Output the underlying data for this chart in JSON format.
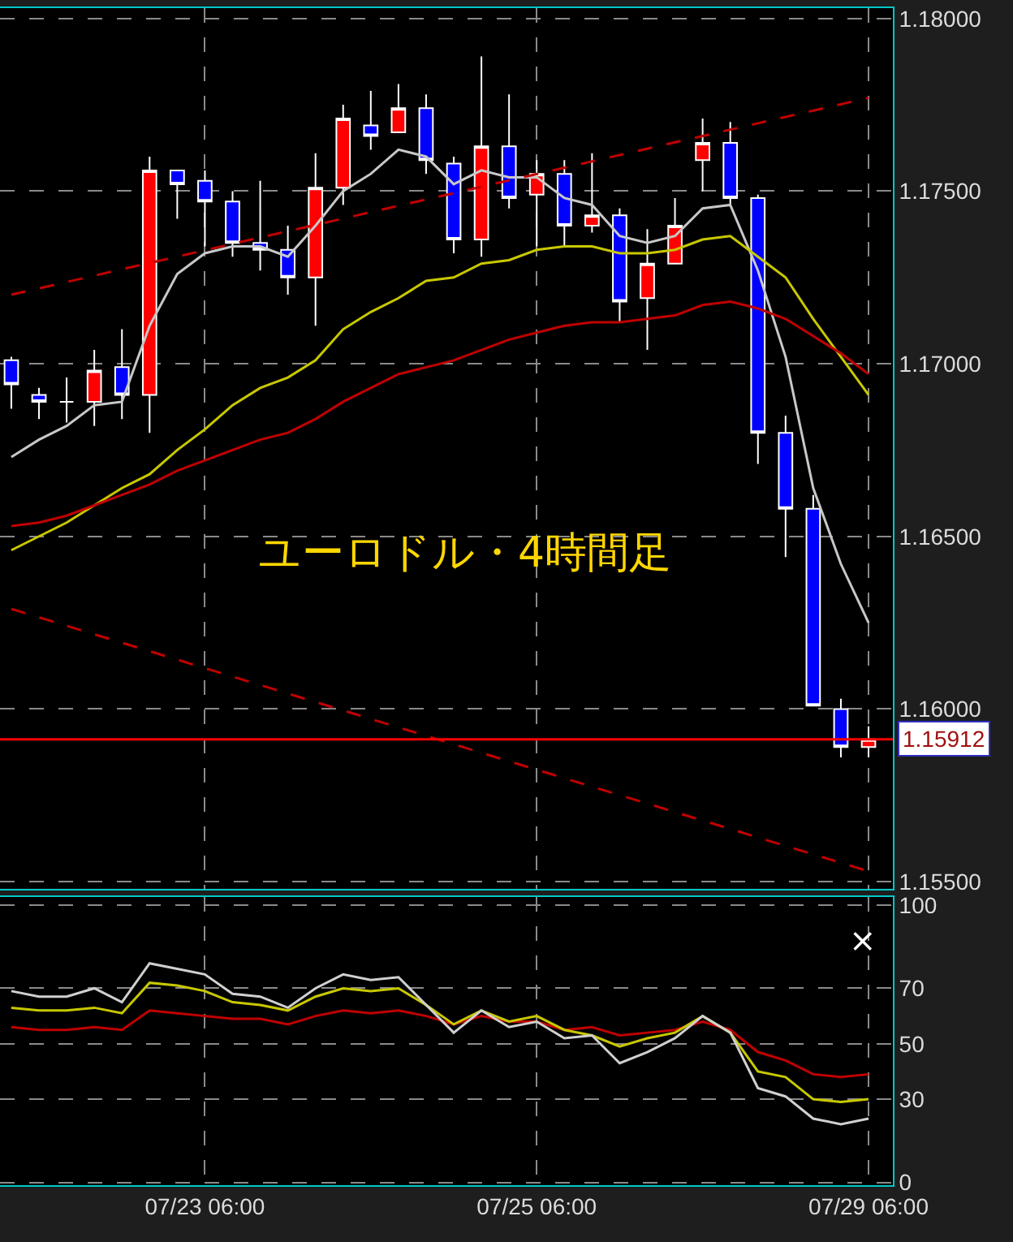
{
  "chart_data": [
    {
      "type": "candlestick",
      "annotations": [
        "ユーロドル・4時間足"
      ],
      "categories": [
        null,
        null,
        null,
        null,
        null,
        null,
        null,
        null,
        null,
        null,
        null,
        null,
        null,
        null,
        null,
        null,
        null,
        null,
        null,
        null,
        null,
        null,
        null,
        null,
        null,
        null,
        null,
        null,
        null,
        null,
        null,
        null
      ],
      "ohlc": [
        [
          1.1701,
          1.1702,
          1.1687,
          1.1694
        ],
        [
          1.1691,
          1.1693,
          1.1684,
          1.1689
        ],
        [
          1.1689,
          1.1696,
          1.1683,
          1.1689
        ],
        [
          1.1689,
          1.1704,
          1.1682,
          1.1698
        ],
        [
          1.1699,
          1.171,
          1.1684,
          1.1691
        ],
        [
          1.1691,
          1.176,
          1.168,
          1.1756
        ],
        [
          1.1756,
          1.1756,
          1.1742,
          1.1752
        ],
        [
          1.1753,
          1.1756,
          1.1734,
          1.1747
        ],
        [
          1.1747,
          1.175,
          1.1731,
          1.1735
        ],
        [
          1.1735,
          1.1753,
          1.1727,
          1.1733
        ],
        [
          1.1733,
          1.174,
          1.172,
          1.1725
        ],
        [
          1.1725,
          1.1761,
          1.1711,
          1.1751
        ],
        [
          1.1751,
          1.1775,
          1.1746,
          1.1771
        ],
        [
          1.1769,
          1.1779,
          1.1762,
          1.1766
        ],
        [
          1.1767,
          1.1781,
          1.1767,
          1.1774
        ],
        [
          1.1774,
          1.1778,
          1.1755,
          1.1759
        ],
        [
          1.1758,
          1.176,
          1.1732,
          1.1736
        ],
        [
          1.1736,
          1.1789,
          1.1731,
          1.1763
        ],
        [
          1.1763,
          1.1778,
          1.1745,
          1.1748
        ],
        [
          1.1749,
          1.1759,
          1.1734,
          1.1755
        ],
        [
          1.1755,
          1.1759,
          1.1734,
          1.174
        ],
        [
          1.174,
          1.1761,
          1.1738,
          1.1743
        ],
        [
          1.1743,
          1.1745,
          1.1712,
          1.1718
        ],
        [
          1.1719,
          1.1739,
          1.1704,
          1.1729
        ],
        [
          1.1729,
          1.1748,
          1.1729,
          1.174
        ],
        [
          1.1759,
          1.1771,
          1.175,
          1.1764
        ],
        [
          1.1764,
          1.177,
          1.1746,
          1.1748
        ],
        [
          1.1748,
          1.1749,
          1.1671,
          1.168
        ],
        [
          1.168,
          1.1685,
          1.1644,
          1.1658
        ],
        [
          1.1658,
          1.1662,
          1.1601,
          1.1601
        ],
        [
          1.16,
          1.1603,
          1.1586,
          1.1589
        ],
        [
          1.1589,
          1.1595,
          1.1586,
          1.15912
        ]
      ],
      "colors": [
        "#0000ff",
        "#0000ff",
        "#ffffff",
        "#ff0000",
        "#0000ff",
        "#ff0000",
        "#0000ff",
        "#0000ff",
        "#0000ff",
        "#0000ff",
        "#0000ff",
        "#ff0000",
        "#ff0000",
        "#0000ff",
        "#ff0000",
        "#0000ff",
        "#0000ff",
        "#ff0000",
        "#0000ff",
        "#ff0000",
        "#0000ff",
        "#ff0000",
        "#0000ff",
        "#ff0000",
        "#ff0000",
        "#ff0000",
        "#0000ff",
        "#0000ff",
        "#0000ff",
        "#0000ff",
        "#0000ff",
        "#ff0000"
      ],
      "series": [
        {
          "type": "line",
          "color": "#c8c8c8",
          "values": [
            1.1673,
            1.1678,
            1.1682,
            1.1688,
            1.1689,
            1.1711,
            1.1726,
            1.1732,
            1.1734,
            1.1734,
            1.1731,
            1.174,
            1.175,
            1.1755,
            1.1762,
            1.176,
            1.1752,
            1.1756,
            1.1754,
            1.1754,
            1.1748,
            1.1746,
            1.1737,
            1.1735,
            1.1737,
            1.1745,
            1.1746,
            1.1727,
            1.1702,
            1.1664,
            1.1642,
            1.1625
          ]
        },
        {
          "type": "line",
          "color": "#c8c800",
          "values": [
            1.1646,
            1.165,
            1.1654,
            1.1659,
            1.1664,
            1.1668,
            1.1675,
            1.1681,
            1.1688,
            1.1693,
            1.1696,
            1.1701,
            1.171,
            1.1715,
            1.1719,
            1.1724,
            1.1725,
            1.1729,
            1.173,
            1.1733,
            1.1734,
            1.1734,
            1.1732,
            1.1732,
            1.1733,
            1.1736,
            1.1737,
            1.1731,
            1.1725,
            1.1713,
            1.1702,
            1.1691
          ]
        },
        {
          "type": "line",
          "color": "#c00000",
          "values": [
            1.1653,
            1.1654,
            1.1656,
            1.1659,
            1.1662,
            1.1665,
            1.1669,
            1.1672,
            1.1675,
            1.1678,
            1.168,
            1.1684,
            1.1689,
            1.1693,
            1.1697,
            1.1699,
            1.1701,
            1.1704,
            1.1707,
            1.1709,
            1.1711,
            1.1712,
            1.1712,
            1.1713,
            1.1714,
            1.1717,
            1.1718,
            1.1716,
            1.1713,
            1.1708,
            1.1703,
            1.1697
          ]
        },
        {
          "type": "line",
          "color": "#c00000",
          "line_style": "dashed",
          "values": [
            1.172,
            null,
            null,
            null,
            null,
            null,
            null,
            null,
            null,
            null,
            null,
            null,
            null,
            null,
            null,
            null,
            null,
            null,
            null,
            null,
            null,
            null,
            null,
            null,
            null,
            null,
            null,
            null,
            null,
            null,
            null,
            1.1777
          ]
        },
        {
          "type": "line",
          "color": "#c00000",
          "line_style": "dashed",
          "values": [
            1.1629,
            null,
            null,
            null,
            null,
            null,
            null,
            null,
            null,
            null,
            null,
            null,
            null,
            null,
            null,
            null,
            null,
            null,
            null,
            null,
            null,
            null,
            null,
            null,
            null,
            null,
            null,
            null,
            null,
            null,
            null,
            1.1553
          ]
        }
      ],
      "ref_lines": [
        {
          "axis": "y",
          "value": 1.15912,
          "label": "1.15912",
          "color": "#ff0000"
        }
      ],
      "ylim": [
        1.1548,
        1.1803
      ],
      "yticks": [
        {
          "value": 1.155,
          "label": "1.15500"
        },
        {
          "value": 1.16,
          "label": "1.16000"
        },
        {
          "value": 1.165,
          "label": "1.16500"
        },
        {
          "value": 1.17,
          "label": "1.17000"
        },
        {
          "value": 1.175,
          "label": "1.17500"
        },
        {
          "value": 1.18,
          "label": "1.18000"
        }
      ],
      "grid": true,
      "tick_labels": "y",
      "line_style": "solid",
      "marker": "none"
    },
    {
      "type": "line",
      "annotations": [
        "×"
      ],
      "categories": [
        null,
        null,
        null,
        null,
        null,
        null,
        null,
        "07/23 06:00",
        null,
        null,
        null,
        null,
        null,
        null,
        null,
        null,
        null,
        null,
        null,
        "07/25 06:00",
        null,
        null,
        null,
        null,
        null,
        null,
        null,
        null,
        null,
        null,
        null,
        "07/29 06:00"
      ],
      "series": [
        {
          "color": "#c00000",
          "values": [
            56,
            55,
            55,
            56,
            55,
            62,
            61,
            60,
            59,
            59,
            57,
            60,
            62,
            61,
            62,
            60,
            57,
            60,
            58,
            58,
            55,
            56,
            53,
            54,
            55,
            58,
            55,
            47,
            44,
            39,
            38,
            39
          ]
        },
        {
          "color": "#c8c800",
          "values": [
            63,
            62,
            62,
            63,
            61,
            72,
            71,
            69,
            65,
            64,
            62,
            67,
            70,
            69,
            70,
            64,
            57,
            62,
            58,
            60,
            55,
            53,
            49,
            52,
            54,
            60,
            54,
            40,
            38,
            30,
            29,
            30
          ]
        },
        {
          "color": "#d0d0d0",
          "values": [
            69,
            67,
            67,
            70,
            65,
            79,
            77,
            75,
            68,
            67,
            63,
            70,
            75,
            73,
            74,
            64,
            54,
            62,
            56,
            58,
            52,
            53,
            43,
            47,
            52,
            60,
            54,
            34,
            31,
            23,
            21,
            23
          ]
        }
      ],
      "ylim": [
        -1,
        103
      ],
      "yticks": [
        0,
        30,
        50,
        70,
        100
      ],
      "grid": true,
      "line_style": "solid",
      "marker": "none"
    }
  ]
}
